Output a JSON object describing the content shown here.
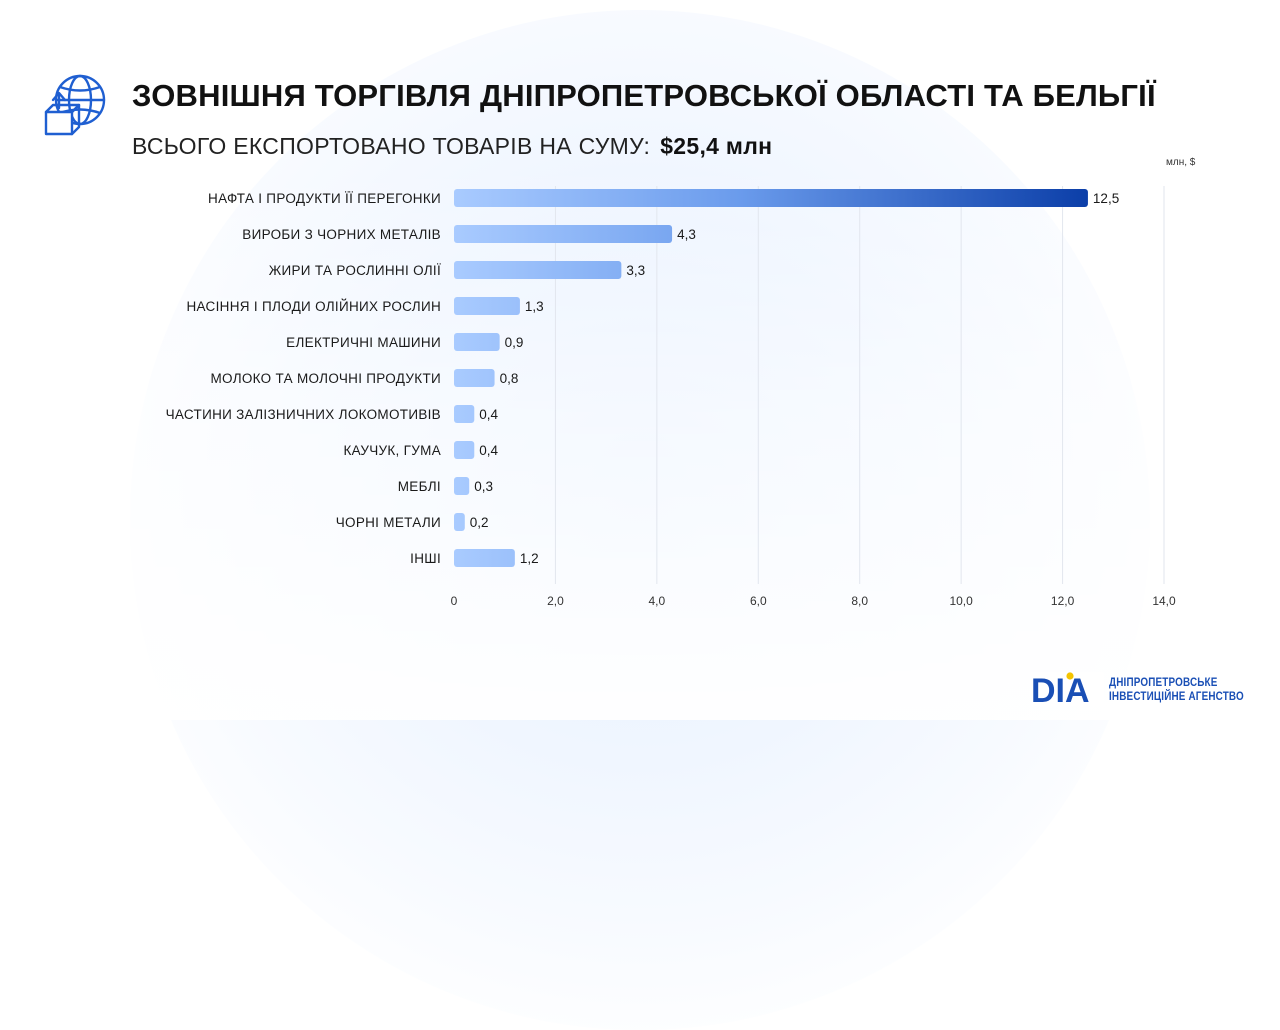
{
  "header": {
    "title": "ЗОВНІШНЯ ТОРГІВЛЯ ДНІПРОПЕТРОВСЬКОЇ ОБЛАСТІ ТА БЕЛЬГІЇ",
    "subtitle_label": "ВСЬОГО ЕКСПОРТОВАНО ТОВАРІВ НА СУМУ:",
    "subtitle_amount": "$25,4 млн",
    "icon": "globe-export-box-icon"
  },
  "brand": {
    "logo_text": "DIA",
    "line1": "ДНІПРОПЕТРОВСЬКЕ",
    "line2": "ІНВЕСТИЦІЙНЕ АГЕНСТВО"
  },
  "colors": {
    "bar_start": "#a9cbff",
    "bar_end": "#0b3ea8",
    "grid": "#e2e6ee",
    "brand": "#1a4fb5"
  },
  "chart_data": {
    "type": "bar",
    "orientation": "horizontal",
    "unit": "млн, $",
    "categories": [
      "НАФТА І ПРОДУКТИ ЇЇ ПЕРЕГОНКИ",
      "ВИРОБИ З ЧОРНИХ МЕТАЛІВ",
      "ЖИРИ ТА РОСЛИННІ ОЛІЇ",
      "НАСІННЯ І ПЛОДИ ОЛІЙНИХ РОСЛИН",
      "ЕЛЕКТРИЧНІ МАШИНИ",
      "МОЛОКО ТА МОЛОЧНІ ПРОДУКТИ",
      "ЧАСТИНИ ЗАЛІЗНИЧНИХ ЛОКОМОТИВІВ",
      "КАУЧУК, ГУМА",
      "МЕБЛІ",
      "ЧОРНІ МЕТАЛИ",
      "ІНШІ"
    ],
    "values": [
      12.5,
      4.3,
      3.3,
      1.3,
      0.9,
      0.8,
      0.4,
      0.4,
      0.3,
      0.2,
      1.2
    ],
    "value_labels": [
      "12,5",
      "4,3",
      "3,3",
      "1,3",
      "0,9",
      "0,8",
      "0,4",
      "0,4",
      "0,3",
      "0,2",
      "1,2"
    ],
    "xlim": [
      0,
      14
    ],
    "xticks": [
      0,
      2,
      4,
      6,
      8,
      10,
      12,
      14
    ],
    "xtick_labels": [
      "0",
      "2,0",
      "4,0",
      "6,0",
      "8,0",
      "10,0",
      "12,0",
      "14,0"
    ],
    "grid": true,
    "legend": false
  }
}
